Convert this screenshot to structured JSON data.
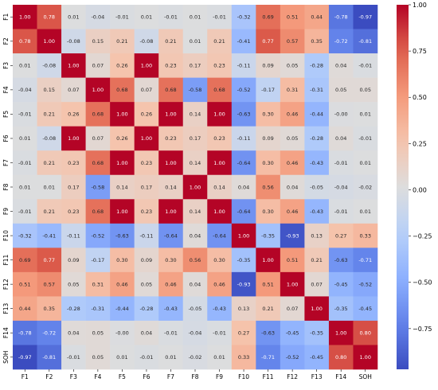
{
  "chart_data": {
    "type": "heatmap",
    "labels": [
      "F1",
      "F2",
      "F3",
      "F4",
      "F5",
      "F6",
      "F7",
      "F8",
      "F9",
      "F10",
      "F11",
      "F12",
      "F13",
      "F14",
      "SOH"
    ],
    "matrix": [
      [
        1.0,
        0.78,
        0.01,
        -0.04,
        -0.01,
        0.01,
        -0.01,
        0.01,
        -0.01,
        -0.32,
        0.69,
        0.51,
        0.44,
        -0.78,
        -0.97
      ],
      [
        0.78,
        1.0,
        -0.08,
        0.15,
        0.21,
        -0.08,
        0.21,
        0.01,
        0.21,
        -0.41,
        0.77,
        0.57,
        0.35,
        -0.72,
        -0.81
      ],
      [
        0.01,
        -0.08,
        1.0,
        0.07,
        0.26,
        1.0,
        0.23,
        0.17,
        0.23,
        -0.11,
        0.09,
        0.05,
        -0.28,
        0.04,
        -0.01
      ],
      [
        -0.04,
        0.15,
        0.07,
        1.0,
        0.68,
        0.07,
        0.68,
        -0.58,
        0.68,
        -0.52,
        -0.17,
        0.31,
        -0.31,
        0.05,
        0.05
      ],
      [
        -0.01,
        0.21,
        0.26,
        0.68,
        1.0,
        0.26,
        1.0,
        0.14,
        1.0,
        -0.63,
        0.3,
        0.46,
        -0.44,
        -0.0,
        0.01
      ],
      [
        0.01,
        -0.08,
        1.0,
        0.07,
        0.26,
        1.0,
        0.23,
        0.17,
        0.23,
        -0.11,
        0.09,
        0.05,
        -0.28,
        0.04,
        -0.01
      ],
      [
        -0.01,
        0.21,
        0.23,
        0.68,
        1.0,
        0.23,
        1.0,
        0.14,
        1.0,
        -0.64,
        0.3,
        0.46,
        -0.43,
        -0.01,
        0.01
      ],
      [
        0.01,
        0.01,
        0.17,
        -0.58,
        0.14,
        0.17,
        0.14,
        1.0,
        0.14,
        0.04,
        0.56,
        0.04,
        -0.05,
        -0.04,
        -0.02
      ],
      [
        -0.01,
        0.21,
        0.23,
        0.68,
        1.0,
        0.23,
        1.0,
        0.14,
        1.0,
        -0.64,
        0.3,
        0.46,
        -0.43,
        -0.01,
        0.01
      ],
      [
        -0.32,
        -0.41,
        -0.11,
        -0.52,
        -0.63,
        -0.11,
        -0.64,
        0.04,
        -0.64,
        1.0,
        -0.35,
        -0.93,
        0.13,
        0.27,
        0.33
      ],
      [
        0.69,
        0.77,
        0.09,
        -0.17,
        0.3,
        0.09,
        0.3,
        0.56,
        0.3,
        -0.35,
        1.0,
        0.51,
        0.21,
        -0.63,
        -0.71
      ],
      [
        0.51,
        0.57,
        0.05,
        0.31,
        0.46,
        0.05,
        0.46,
        0.04,
        0.46,
        -0.93,
        0.51,
        1.0,
        0.07,
        -0.45,
        -0.52
      ],
      [
        0.44,
        0.35,
        -0.28,
        -0.31,
        -0.44,
        -0.28,
        -0.43,
        -0.05,
        -0.43,
        0.13,
        0.21,
        0.07,
        1.0,
        -0.35,
        -0.45
      ],
      [
        -0.78,
        -0.72,
        0.04,
        0.05,
        -0.0,
        0.04,
        -0.01,
        -0.04,
        -0.01,
        0.27,
        -0.63,
        -0.45,
        -0.35,
        1.0,
        0.8
      ],
      [
        -0.97,
        -0.81,
        -0.01,
        0.05,
        0.01,
        -0.01,
        0.01,
        -0.02,
        0.01,
        0.33,
        -0.71,
        -0.52,
        -0.45,
        0.8,
        1.0
      ]
    ],
    "colorbar": {
      "colormap": "coolwarm",
      "range": [
        -0.97,
        1.0
      ],
      "ticks": [
        1.0,
        0.75,
        0.5,
        0.25,
        0.0,
        -0.25,
        -0.5,
        -0.75
      ],
      "tick_labels": [
        "1.00",
        "0.75",
        "0.50",
        "0.25",
        "0.00",
        "−0.25",
        "−0.50",
        "−0.75"
      ],
      "placement": "right"
    },
    "title": "",
    "xlabel": "",
    "ylabel": ""
  }
}
